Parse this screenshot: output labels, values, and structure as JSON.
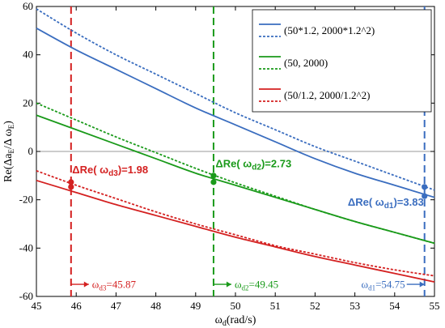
{
  "chart_data": {
    "type": "line",
    "title": "",
    "xlabel": "ω_d(rad/s)",
    "ylabel": "Re(Δa_E/Δ ω_E)",
    "xlim": [
      45,
      55
    ],
    "ylim": [
      -60,
      60
    ],
    "xticks": [
      45,
      46,
      47,
      48,
      49,
      50,
      51,
      52,
      53,
      54,
      55
    ],
    "yticks": [
      -60,
      -40,
      -20,
      0,
      20,
      40,
      60
    ],
    "grid": false,
    "legend_position": "top-right",
    "legend": [
      {
        "label": "(50*1.2, 2000*1.2^2)",
        "color": "#3a6dbf"
      },
      {
        "label": "(50, 2000)",
        "color": "#1a9a1a"
      },
      {
        "label": "(50/1.2, 2000/1.2^2)",
        "color": "#d42020"
      }
    ],
    "x": [
      45,
      46,
      47,
      48,
      49,
      50,
      51,
      52,
      53,
      54,
      55
    ],
    "series": [
      {
        "group": 0,
        "style": "solid",
        "color": "#3a6dbf",
        "values": [
          51,
          42,
          34,
          26,
          18,
          11,
          4,
          -3,
          -9,
          -14,
          -19
        ]
      },
      {
        "group": 0,
        "style": "dotted",
        "color": "#3a6dbf",
        "values": [
          59,
          49,
          40,
          32,
          24,
          16,
          9,
          2,
          -4,
          -10,
          -16
        ]
      },
      {
        "group": 1,
        "style": "solid",
        "color": "#1a9a1a",
        "values": [
          15,
          9,
          3,
          -3,
          -9,
          -14,
          -19,
          -24,
          -29,
          -33.5,
          -38
        ]
      },
      {
        "group": 1,
        "style": "dotted",
        "color": "#1a9a1a",
        "values": [
          20,
          13,
          6,
          -0.5,
          -7,
          -13,
          -18.5,
          -24,
          -29,
          -33.5,
          -38
        ]
      },
      {
        "group": 2,
        "style": "solid",
        "color": "#d42020",
        "values": [
          -12,
          -17,
          -22,
          -26.5,
          -31,
          -35.5,
          -39.5,
          -43.5,
          -47,
          -50.5,
          -54
        ]
      },
      {
        "group": 2,
        "style": "dotted",
        "color": "#d42020",
        "values": [
          -8,
          -14,
          -19.5,
          -25,
          -30,
          -34.5,
          -39,
          -42.5,
          -46,
          -49,
          -51.5
        ]
      }
    ],
    "vlines": [
      {
        "x": 45.87,
        "color": "#d42020"
      },
      {
        "x": 49.45,
        "color": "#1a9a1a"
      },
      {
        "x": 54.75,
        "color": "#3a6dbf"
      }
    ],
    "markers": [
      {
        "x": 45.87,
        "y": -12.7,
        "color": "#d42020"
      },
      {
        "x": 45.87,
        "y": -14.7,
        "color": "#d42020"
      },
      {
        "x": 49.45,
        "y": -10.0,
        "color": "#1a9a1a"
      },
      {
        "x": 49.45,
        "y": -12.7,
        "color": "#1a9a1a"
      },
      {
        "x": 54.75,
        "y": -14.7,
        "color": "#3a6dbf"
      },
      {
        "x": 54.75,
        "y": -18.5,
        "color": "#3a6dbf"
      }
    ],
    "annotations": [
      {
        "text": "ΔRe( ω_d3)=1.98",
        "x": 45.9,
        "y": -9,
        "color": "#d42020",
        "anchor": "start"
      },
      {
        "text": "ΔRe( ω_d2)=2.73",
        "x": 49.5,
        "y": -6.5,
        "color": "#1a9a1a",
        "anchor": "start"
      },
      {
        "text": "ΔRe( ω_d1)=3.83",
        "x": 54.73,
        "y": -22.5,
        "color": "#3a6dbf",
        "anchor": "end"
      }
    ],
    "omega_labels": [
      {
        "text": "ω_d3=45.87",
        "x": 45.87,
        "y": -55,
        "color": "#d42020",
        "side": "right"
      },
      {
        "text": "ω_d2=49.45",
        "x": 49.45,
        "y": -55,
        "color": "#1a9a1a",
        "side": "right"
      },
      {
        "text": "ω_d1=54.75",
        "x": 54.75,
        "y": -55,
        "color": "#3a6dbf",
        "side": "left"
      }
    ]
  }
}
